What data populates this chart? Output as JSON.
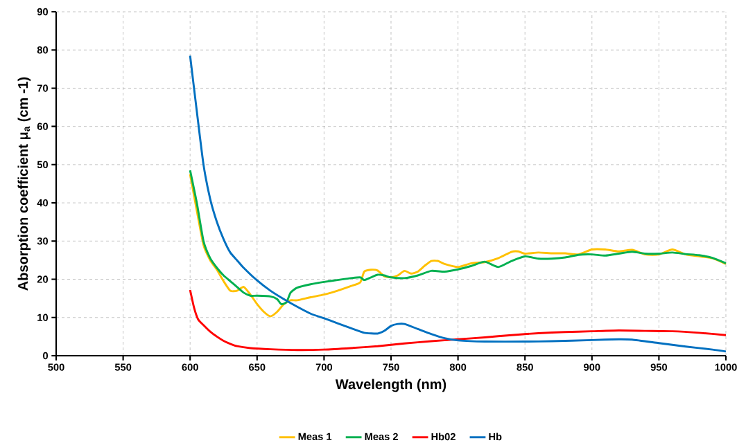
{
  "chart_data": {
    "type": "line",
    "xlabel": "Wavelength (nm)",
    "ylabel": "Absorption coefficient  μ$_{a}$ (cm -1)",
    "xlim": [
      500,
      1000
    ],
    "xticks": [
      500,
      550,
      600,
      650,
      700,
      750,
      800,
      850,
      900,
      950,
      1000
    ],
    "ylim": [
      0,
      90
    ],
    "yticks": [
      0,
      10,
      20,
      30,
      40,
      50,
      60,
      70,
      80,
      90
    ],
    "grid": true,
    "legend": "bottom",
    "series": [
      {
        "name": "Meas 1",
        "color": "#ffc000",
        "x": [
          600,
          605,
          610,
          615,
          620,
          625,
          630,
          635,
          640,
          645,
          650,
          655,
          660,
          665,
          670,
          675,
          680,
          690,
          700,
          710,
          720,
          727,
          730,
          735,
          740,
          745,
          750,
          755,
          760,
          765,
          770,
          775,
          780,
          785,
          790,
          800,
          810,
          820,
          830,
          840,
          845,
          850,
          860,
          870,
          880,
          890,
          900,
          910,
          920,
          930,
          940,
          950,
          960,
          970,
          980,
          990,
          1000
        ],
        "values": [
          47.5,
          38,
          29,
          25,
          22.5,
          19.5,
          17,
          17,
          18,
          16,
          13.5,
          11.5,
          10.3,
          11.5,
          13.5,
          14.5,
          14.5,
          15.3,
          16,
          17,
          18.2,
          19.2,
          22,
          22.5,
          22.3,
          20.8,
          20.5,
          21,
          22.2,
          21.5,
          22,
          23.5,
          24.8,
          24.8,
          24,
          23.2,
          24.2,
          24.5,
          25.5,
          27.2,
          27.3,
          26.7,
          27,
          26.8,
          26.8,
          26.5,
          27.8,
          27.8,
          27.3,
          27.7,
          26.5,
          26.5,
          27.8,
          26.5,
          26,
          25.5,
          24
        ]
      },
      {
        "name": "Meas 2",
        "color": "#00b050",
        "x": [
          600,
          605,
          610,
          615,
          620,
          625,
          630,
          635,
          640,
          645,
          650,
          660,
          665,
          668,
          672,
          675,
          680,
          690,
          700,
          710,
          720,
          727,
          730,
          735,
          740,
          745,
          750,
          760,
          770,
          780,
          790,
          800,
          810,
          820,
          830,
          840,
          850,
          860,
          870,
          880,
          890,
          900,
          910,
          920,
          930,
          940,
          950,
          960,
          970,
          980,
          990,
          1000
        ],
        "values": [
          48.5,
          40,
          30,
          25.5,
          23,
          21,
          19.5,
          18,
          16.5,
          15.7,
          15.7,
          15.5,
          14.8,
          13.5,
          14,
          16.5,
          17.8,
          18.7,
          19.3,
          19.8,
          20.3,
          20.5,
          19.8,
          20.5,
          21.2,
          21,
          20.5,
          20.3,
          21,
          22.2,
          22,
          22.6,
          23.5,
          24.6,
          23.2,
          24.8,
          26,
          25.4,
          25.4,
          25.7,
          26.4,
          26.5,
          26.2,
          26.7,
          27.2,
          26.7,
          26.7,
          27,
          26.6,
          26.3,
          25.6,
          24.2
        ]
      },
      {
        "name": "Hb02",
        "color": "#ff0000",
        "x": [
          600,
          603,
          606,
          610,
          615,
          620,
          625,
          630,
          635,
          645,
          660,
          680,
          700,
          720,
          740,
          760,
          780,
          800,
          820,
          840,
          860,
          880,
          900,
          920,
          940,
          960,
          980,
          1000
        ],
        "values": [
          17.2,
          12.5,
          9.5,
          8,
          6.3,
          5,
          3.9,
          3.1,
          2.5,
          2,
          1.7,
          1.5,
          1.6,
          2,
          2.5,
          3.2,
          3.8,
          4.3,
          4.8,
          5.4,
          5.9,
          6.2,
          6.4,
          6.6,
          6.5,
          6.4,
          6,
          5.4
        ]
      },
      {
        "name": "Hb",
        "color": "#0070c0",
        "x": [
          600,
          605,
          610,
          615,
          620,
          625,
          630,
          635,
          640,
          650,
          660,
          670,
          680,
          690,
          700,
          710,
          720,
          730,
          740,
          745,
          750,
          755,
          760,
          770,
          780,
          790,
          800,
          820,
          850,
          870,
          900,
          920,
          930,
          950,
          970,
          990,
          1000
        ],
        "values": [
          78.5,
          64,
          50,
          41,
          35,
          30.5,
          27,
          25,
          23,
          19.7,
          17,
          14.8,
          12.8,
          11,
          9.8,
          8.5,
          7.2,
          6,
          5.8,
          6.5,
          7.8,
          8.3,
          8.3,
          7,
          5.7,
          4.6,
          4,
          3.7,
          3.7,
          3.8,
          4.1,
          4.3,
          4.2,
          3.3,
          2.4,
          1.6,
          1.1
        ]
      }
    ]
  }
}
